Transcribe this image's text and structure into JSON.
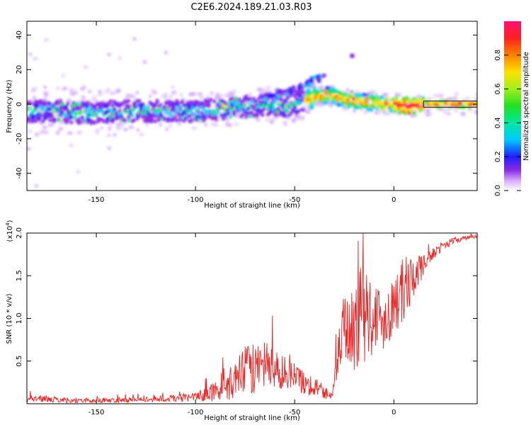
{
  "title": "C2E6.2024.189.21.03.R03",
  "chart_data": [
    {
      "type": "heatmap",
      "name": "spectrogram",
      "xlabel": "Height of straight line (km)",
      "ylabel": "Frequency (Hz)",
      "xlim": [
        -185,
        42
      ],
      "ylim": [
        -50,
        48
      ],
      "xticks": [
        -150,
        -100,
        -50,
        0
      ],
      "xtick_labels": [
        "-150",
        "-100",
        "-50",
        "0"
      ],
      "yticks": [
        -40,
        -20,
        0,
        20,
        40
      ],
      "ytick_labels": [
        "-40",
        "-20",
        "0",
        "20",
        "40"
      ],
      "ridge_x": [
        -185,
        -170,
        -160,
        -150,
        -140,
        -130,
        -120,
        -110,
        -100,
        -90,
        -80,
        -70,
        -65,
        -60,
        -55,
        -50,
        -45,
        -40,
        -35,
        -30,
        -25,
        -20,
        -15,
        -10,
        -5,
        0,
        5,
        10,
        20,
        30,
        42
      ],
      "ridge_y": [
        -4,
        -4,
        -5,
        -5,
        -4,
        -4,
        -4,
        -4,
        -4,
        -3,
        -2,
        -1,
        0,
        -1,
        -2,
        0,
        2,
        4,
        5,
        5,
        3,
        2,
        1,
        1,
        0,
        0,
        -1,
        -1,
        0,
        0,
        0
      ],
      "branch_x": [
        -65,
        -60,
        -55,
        -50,
        -45,
        -40,
        -35
      ],
      "branch_y": [
        4,
        6,
        7,
        8,
        11,
        14,
        16
      ],
      "isolated_blob": {
        "x": -21,
        "y": 28
      },
      "colorbar": {
        "label": "Normalized spectral amplitude",
        "ticks": [
          0.0,
          0.2,
          0.4,
          0.6,
          0.8
        ],
        "tick_labels": [
          "0.0",
          "0.2",
          "0.4",
          "0.6",
          "0.8"
        ],
        "range": [
          0,
          1
        ]
      },
      "grid": false
    },
    {
      "type": "line",
      "name": "snr",
      "xlabel": "Height of straight line (km)",
      "ylabel": "SNR (10 * v/v)",
      "scale_label": "(x10",
      "scale_exp": "4",
      "scale_close": ")",
      "xlim": [
        -185,
        42
      ],
      "ylim": [
        0,
        2.0
      ],
      "xticks": [
        -150,
        -100,
        -50,
        0
      ],
      "xtick_labels": [
        "-150",
        "-100",
        "-50",
        "0"
      ],
      "yticks": [
        0.5,
        1.0,
        1.5,
        2.0
      ],
      "ytick_labels": [
        "0.5",
        "1.0",
        "1.5",
        "2.0"
      ],
      "line_color": "#ee2222",
      "envelope": {
        "x": [
          -185,
          -160,
          -130,
          -115,
          -100,
          -90,
          -80,
          -75,
          -70,
          -65,
          -60,
          -55,
          -50,
          -45,
          -40,
          -35,
          -31,
          -28,
          -25,
          -20,
          -15,
          -10,
          -5,
          0,
          5,
          10,
          15,
          20,
          25,
          30,
          35,
          42
        ],
        "base": [
          0.06,
          0.03,
          0.04,
          0.05,
          0.07,
          0.12,
          0.22,
          0.33,
          0.36,
          0.38,
          0.36,
          0.32,
          0.28,
          0.22,
          0.18,
          0.12,
          0.09,
          0.55,
          0.8,
          0.8,
          0.95,
          0.95,
          0.9,
          1.1,
          1.25,
          1.45,
          1.6,
          1.75,
          1.85,
          1.9,
          1.93,
          1.96
        ],
        "amplitude": [
          0.04,
          0.03,
          0.03,
          0.04,
          0.05,
          0.12,
          0.22,
          0.3,
          0.3,
          0.3,
          0.25,
          0.2,
          0.18,
          0.14,
          0.12,
          0.08,
          0.06,
          0.25,
          0.45,
          0.55,
          0.6,
          0.45,
          0.35,
          0.35,
          0.4,
          0.25,
          0.12,
          0.07,
          0.05,
          0.04,
          0.03,
          0.02
        ]
      },
      "grid": false
    }
  ]
}
